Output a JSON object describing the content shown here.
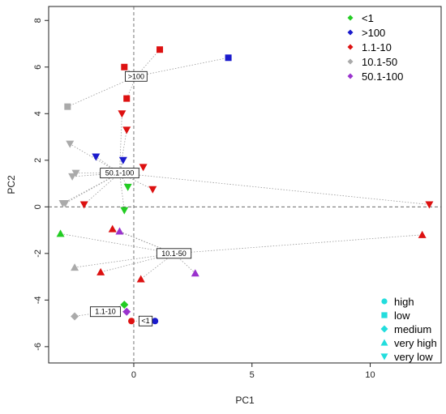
{
  "chart_data": {
    "type": "scatter",
    "title": "",
    "xlabel": "PC1",
    "ylabel": "PC2",
    "xlim": [
      -3.6,
      13.0
    ],
    "ylim": [
      -6.7,
      8.6
    ],
    "xticks": [
      0,
      5,
      10
    ],
    "xtick_labels": [
      "0",
      "5",
      "10"
    ],
    "yticks": [
      -6,
      -4,
      -2,
      0,
      2,
      4,
      6,
      8
    ],
    "ytick_labels": [
      "-6",
      "-4",
      "-2",
      "0",
      "2",
      "4",
      "6",
      "8"
    ],
    "reference_lines": {
      "x": 0,
      "y": 0
    },
    "grid": false,
    "colors": {
      "<1": "#22cc22",
      ">100": "#1a1acc",
      "1.1-10": "#dd1111",
      "10.1-50": "#aaaaaa",
      "50.1-100": "#9a32cd"
    },
    "color_legend": {
      "position": "top-right",
      "entries": [
        {
          "label": "<1",
          "group": "<1"
        },
        {
          "label": ">100",
          "group": ">100"
        },
        {
          "label": "1.1-10",
          "group": "1.1-10"
        },
        {
          "label": "10.1-50",
          "group": "10.1-50"
        },
        {
          "label": "50.1-100",
          "group": "50.1-100"
        }
      ]
    },
    "shape_legend": {
      "position": "bottom-right",
      "color": "#22dddd",
      "entries": [
        {
          "label": "high",
          "shape": "circle"
        },
        {
          "label": "low",
          "shape": "square"
        },
        {
          "label": "medium",
          "shape": "diamond"
        },
        {
          "label": "very high",
          "shape": "triangle-up"
        },
        {
          "label": "very low",
          "shape": "triangle-down"
        }
      ]
    },
    "groups": [
      {
        "name": ">100",
        "centroid": [
          0.1,
          5.6
        ],
        "points": [
          {
            "x": -0.4,
            "y": 6.0,
            "shape": "square",
            "color": "1.1-10"
          },
          {
            "x": 1.1,
            "y": 6.75,
            "shape": "square",
            "color": "1.1-10"
          },
          {
            "x": 4.0,
            "y": 6.4,
            "shape": "square",
            "color": ">100"
          },
          {
            "x": -2.8,
            "y": 4.3,
            "shape": "square",
            "color": "10.1-50"
          },
          {
            "x": -0.3,
            "y": 4.65,
            "shape": "square",
            "color": "1.1-10"
          }
        ]
      },
      {
        "name": "50.1-100",
        "centroid": [
          -0.6,
          1.45
        ],
        "points": [
          {
            "x": -0.5,
            "y": 4.0,
            "shape": "triangle-down",
            "color": "1.1-10"
          },
          {
            "x": -0.3,
            "y": 3.3,
            "shape": "triangle-down",
            "color": "1.1-10"
          },
          {
            "x": -2.7,
            "y": 2.7,
            "shape": "triangle-down",
            "color": "10.1-50"
          },
          {
            "x": -1.6,
            "y": 2.15,
            "shape": "triangle-down",
            "color": ">100"
          },
          {
            "x": -0.45,
            "y": 2.0,
            "shape": "triangle-down",
            "color": ">100"
          },
          {
            "x": 0.4,
            "y": 1.7,
            "shape": "triangle-down",
            "color": "1.1-10"
          },
          {
            "x": -2.45,
            "y": 1.45,
            "shape": "triangle-down",
            "color": "10.1-50"
          },
          {
            "x": -2.6,
            "y": 1.3,
            "shape": "triangle-down",
            "color": "10.1-50"
          },
          {
            "x": -0.25,
            "y": 0.85,
            "shape": "triangle-down",
            "color": "<1"
          },
          {
            "x": 0.8,
            "y": 0.75,
            "shape": "triangle-down",
            "color": "1.1-10"
          },
          {
            "x": -2.9,
            "y": 0.15,
            "shape": "triangle-down",
            "color": "10.1-50"
          },
          {
            "x": -3.0,
            "y": 0.15,
            "shape": "triangle-down",
            "color": "10.1-50"
          },
          {
            "x": -2.1,
            "y": 0.1,
            "shape": "triangle-down",
            "color": "1.1-10"
          },
          {
            "x": -0.4,
            "y": -0.15,
            "shape": "triangle-down",
            "color": "<1"
          },
          {
            "x": 12.5,
            "y": 0.1,
            "shape": "triangle-down",
            "color": "1.1-10"
          }
        ]
      },
      {
        "name": "10.1-50",
        "centroid": [
          1.7,
          -2.0
        ],
        "points": [
          {
            "x": 12.2,
            "y": -1.2,
            "shape": "triangle-up",
            "color": "1.1-10"
          },
          {
            "x": -3.1,
            "y": -1.15,
            "shape": "triangle-up",
            "color": "<1"
          },
          {
            "x": -0.9,
            "y": -0.95,
            "shape": "triangle-up",
            "color": "1.1-10"
          },
          {
            "x": -0.6,
            "y": -1.05,
            "shape": "triangle-up",
            "color": "50.1-100"
          },
          {
            "x": -2.5,
            "y": -2.6,
            "shape": "triangle-up",
            "color": "10.1-50"
          },
          {
            "x": -1.4,
            "y": -2.8,
            "shape": "triangle-up",
            "color": "1.1-10"
          },
          {
            "x": 2.6,
            "y": -2.85,
            "shape": "triangle-up",
            "color": "50.1-100"
          },
          {
            "x": 0.3,
            "y": -3.1,
            "shape": "triangle-up",
            "color": "1.1-10"
          }
        ]
      },
      {
        "name": "1.1-10",
        "centroid": [
          -1.2,
          -4.5
        ],
        "points": [
          {
            "x": -0.4,
            "y": -4.2,
            "shape": "diamond",
            "color": "<1"
          },
          {
            "x": -0.3,
            "y": -4.5,
            "shape": "diamond",
            "color": "50.1-100"
          },
          {
            "x": -2.5,
            "y": -4.7,
            "shape": "diamond",
            "color": "10.1-50"
          }
        ]
      },
      {
        "name": "<1",
        "centroid": [
          0.5,
          -4.9
        ],
        "points": [
          {
            "x": -0.1,
            "y": -4.9,
            "shape": "circle",
            "color": "1.1-10"
          },
          {
            "x": 0.9,
            "y": -4.9,
            "shape": "circle",
            "color": ">100"
          }
        ]
      }
    ]
  }
}
